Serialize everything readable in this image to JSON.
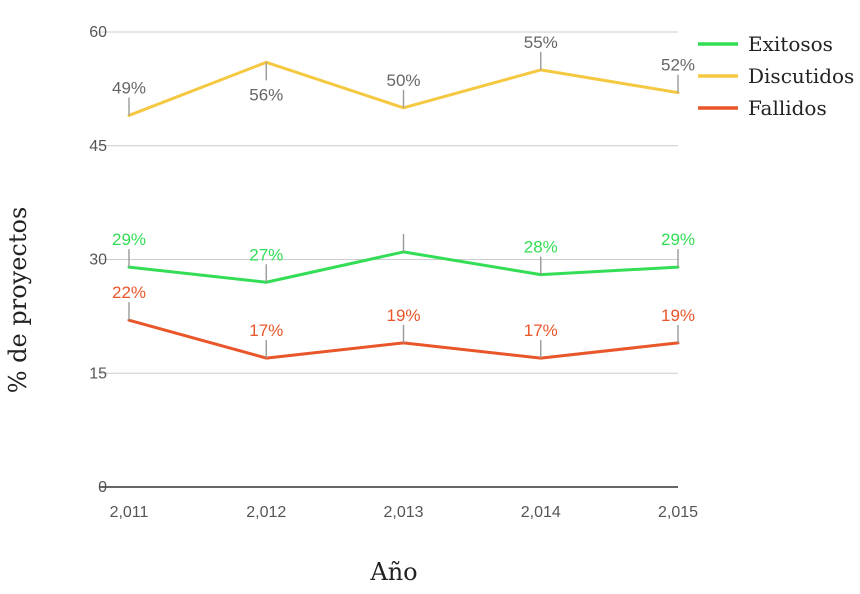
{
  "chart_data": {
    "type": "line",
    "title": "",
    "xlabel": "Año",
    "ylabel": "% de proyectos",
    "categories": [
      "2,011",
      "2,012",
      "2,013",
      "2,014",
      "2,015"
    ],
    "x": [
      2011,
      2012,
      2013,
      2014,
      2015
    ],
    "ylim": [
      0,
      60
    ],
    "yticks": [
      0,
      15,
      30,
      45,
      60
    ],
    "grid": true,
    "legend_position": "top-right",
    "series": [
      {
        "name": "Exitosos",
        "color": "#33dd55",
        "values": [
          29,
          27,
          31,
          28,
          29
        ],
        "labels": [
          "29%",
          "27%",
          "",
          "28%",
          "29%"
        ]
      },
      {
        "name": "Discutidos",
        "color": "#f5c842",
        "values": [
          49,
          56,
          50,
          55,
          52
        ],
        "labels": [
          "49%",
          "56%",
          "50%",
          "55%",
          "52%"
        ]
      },
      {
        "name": "Fallidos",
        "color": "#e8562a",
        "values": [
          22,
          17,
          19,
          17,
          19
        ],
        "labels": [
          "22%",
          "17%",
          "19%",
          "17%",
          "19%"
        ]
      }
    ]
  }
}
